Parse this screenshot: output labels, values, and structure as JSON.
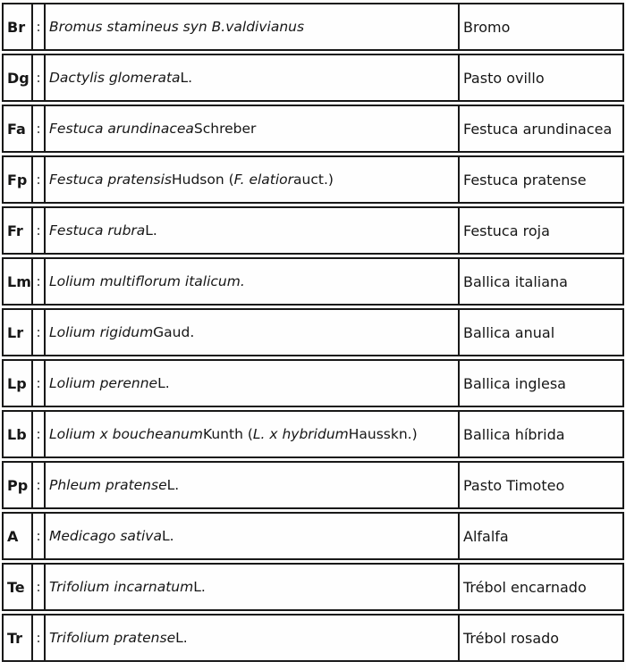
{
  "page": {
    "background": "#fdfdfc",
    "border_color": "#181818",
    "text_color": "#161616"
  },
  "table": {
    "separator_char": ":",
    "columns": [
      "abbreviation",
      "separator",
      "scientific_name",
      "common_name"
    ],
    "rows": [
      {
        "abbr": "Br",
        "species": [
          {
            "text": "Bromus stamineus syn B.valdivianus",
            "italic": true
          }
        ],
        "common": "Bromo"
      },
      {
        "abbr": "Dg",
        "species": [
          {
            "text": "Dactylis glomerata",
            "italic": true
          },
          {
            "text": " L.",
            "italic": false
          }
        ],
        "common": "Pasto ovillo"
      },
      {
        "abbr": "Fa",
        "species": [
          {
            "text": "Festuca arundinacea",
            "italic": true
          },
          {
            "text": " Schreber",
            "italic": false
          }
        ],
        "common": "Festuca arundinacea"
      },
      {
        "abbr": "Fp",
        "species": [
          {
            "text": "Festuca pratensis",
            "italic": true
          },
          {
            "text": " Hudson (",
            "italic": false
          },
          {
            "text": "F. elatior",
            "italic": true
          },
          {
            "text": " auct.)",
            "italic": false
          }
        ],
        "common": "Festuca pratense"
      },
      {
        "abbr": "Fr",
        "species": [
          {
            "text": "Festuca rubra",
            "italic": true
          },
          {
            "text": " L.",
            "italic": false
          }
        ],
        "common": "Festuca roja"
      },
      {
        "abbr": "Lm",
        "species": [
          {
            "text": "Lolium multiflorum italicum.",
            "italic": true
          }
        ],
        "common": "Ballica italiana"
      },
      {
        "abbr": "Lr",
        "species": [
          {
            "text": "Lolium rigidum",
            "italic": true
          },
          {
            "text": " Gaud.",
            "italic": false
          }
        ],
        "common": "Ballica anual"
      },
      {
        "abbr": "Lp",
        "species": [
          {
            "text": "Lolium perenne",
            "italic": true
          },
          {
            "text": " L.",
            "italic": false
          }
        ],
        "common": "Ballica inglesa"
      },
      {
        "abbr": "Lb",
        "species": [
          {
            "text": "Lolium x boucheanum",
            "italic": true
          },
          {
            "text": " Kunth (",
            "italic": false
          },
          {
            "text": "L. x hybridum",
            "italic": true
          },
          {
            "text": " Hausskn.)",
            "italic": false
          }
        ],
        "common": "Ballica híbrida"
      },
      {
        "abbr": "Pp",
        "species": [
          {
            "text": "Phleum pratense",
            "italic": true
          },
          {
            "text": " L.",
            "italic": false
          }
        ],
        "common": "Pasto Timoteo"
      },
      {
        "abbr": "A",
        "species": [
          {
            "text": "Medicago sativa",
            "italic": true
          },
          {
            "text": " L.",
            "italic": false
          }
        ],
        "common": "Alfalfa"
      },
      {
        "abbr": "Te",
        "species": [
          {
            "text": "Trifolium incarnatum",
            "italic": true
          },
          {
            "text": " L.",
            "italic": false
          }
        ],
        "common": "Trébol encarnado"
      },
      {
        "abbr": "Tr",
        "species": [
          {
            "text": "Trifolium pratense",
            "italic": true
          },
          {
            "text": " L.",
            "italic": false
          }
        ],
        "common": "Trébol rosado"
      }
    ]
  }
}
